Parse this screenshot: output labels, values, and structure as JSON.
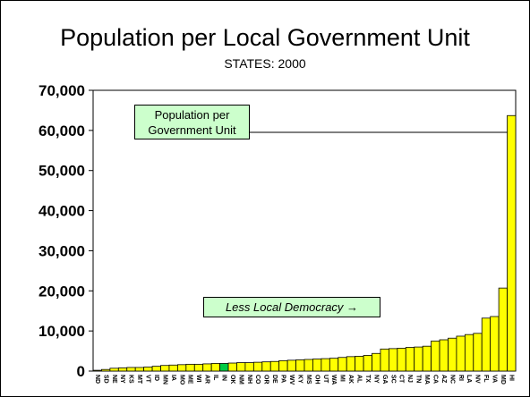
{
  "chart_data": {
    "type": "bar",
    "title": "Population per Local Government Unit",
    "subtitle": "STATES: 2000",
    "legend_label": "Population per Government Unit",
    "annotation": "Less Local Democracy →",
    "ylim": [
      0,
      70000
    ],
    "yticks": [
      "0",
      "10,000",
      "20,000",
      "30,000",
      "40,000",
      "50,000",
      "60,000",
      "70,000"
    ],
    "grid": "none",
    "bar_color": "#ffff00",
    "highlight_color": "#00cc44",
    "highlight_category": "IN",
    "categories": [
      "ND",
      "SD",
      "NE",
      "NY",
      "KS",
      "MT",
      "VT",
      "ID",
      "MN",
      "IA",
      "MO",
      "ME",
      "WI",
      "AR",
      "IL",
      "IN",
      "OK",
      "NM",
      "NH",
      "CO",
      "OR",
      "DE",
      "PA",
      "WV",
      "KY",
      "MS",
      "OH",
      "UT",
      "WA",
      "MI",
      "AK",
      "AL",
      "TX",
      "NY",
      "GA",
      "SC",
      "CT",
      "NJ",
      "TN",
      "MA",
      "CA",
      "AZ",
      "NC",
      "RI",
      "LA",
      "NV",
      "FL",
      "VA",
      "MD",
      "HI"
    ],
    "values": [
      200,
      400,
      700,
      800,
      900,
      900,
      1000,
      1200,
      1400,
      1500,
      1600,
      1700,
      1700,
      1800,
      1900,
      1900,
      2000,
      2100,
      2100,
      2200,
      2300,
      2400,
      2600,
      2700,
      2800,
      2900,
      3000,
      3100,
      3200,
      3400,
      3600,
      3700,
      3900,
      4400,
      5500,
      5600,
      5700,
      5900,
      6000,
      6200,
      7500,
      7800,
      8200,
      8700,
      9100,
      9400,
      13200,
      13600,
      20700,
      63700
    ]
  }
}
